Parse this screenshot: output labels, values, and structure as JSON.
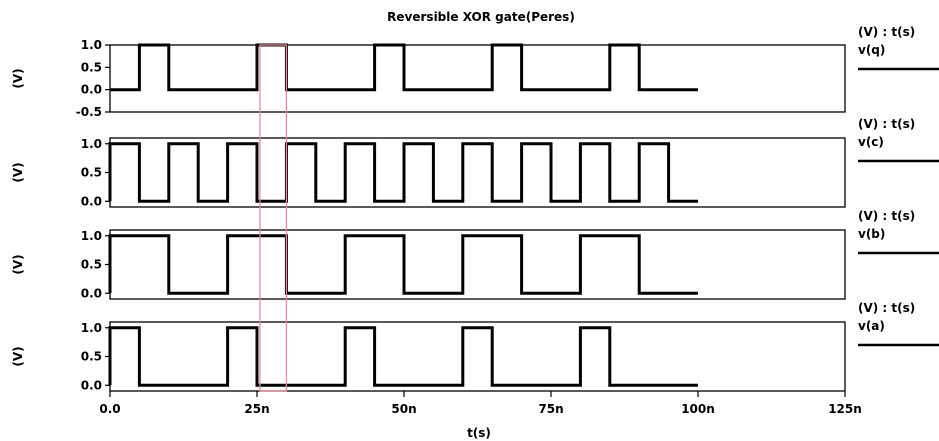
{
  "chart_data": {
    "type": "line",
    "title": "Reversible XOR gate(Peres)",
    "xlabel": "t(s)",
    "x_range": [
      0,
      125
    ],
    "x_ticks": [
      "0.0",
      "25n",
      "50n",
      "75n",
      "100n",
      "125n"
    ],
    "x_tick_values": [
      0,
      25,
      50,
      75,
      100,
      125
    ],
    "highlight_region": [
      25.5,
      30
    ],
    "highlight_color": "#e68a98",
    "line_color": "#000000",
    "panels": [
      {
        "ylabel": "(V)",
        "legend_header": "(V) : t(s)",
        "series_name": "v(q)",
        "ylim": [
          -0.5,
          1.0
        ],
        "y_ticks": [
          "1.0",
          "0.5",
          "0.0",
          "-0.5"
        ],
        "y_tick_values": [
          1.0,
          0.5,
          0.0,
          -0.5
        ],
        "x": [
          0,
          5,
          5,
          10,
          10,
          25,
          25,
          30,
          30,
          45,
          45,
          50,
          50,
          65,
          65,
          70,
          70,
          85,
          85,
          90,
          90,
          100
        ],
        "y": [
          0,
          0,
          1,
          1,
          0,
          0,
          1,
          1,
          0,
          0,
          1,
          1,
          0,
          0,
          1,
          1,
          0,
          0,
          1,
          1,
          0,
          0
        ]
      },
      {
        "ylabel": "(V)",
        "legend_header": "(V) : t(s)",
        "series_name": "v(c)",
        "ylim": [
          -0.1,
          1.1
        ],
        "y_ticks": [
          "1.0",
          "0.5",
          "0.0"
        ],
        "y_tick_values": [
          1.0,
          0.5,
          0.0
        ],
        "x": [
          0,
          0,
          5,
          5,
          10,
          10,
          15,
          15,
          20,
          20,
          25,
          25,
          30,
          30,
          35,
          35,
          40,
          40,
          45,
          45,
          50,
          50,
          55,
          55,
          60,
          60,
          65,
          65,
          70,
          70,
          75,
          75,
          80,
          80,
          85,
          85,
          90,
          90,
          95,
          95,
          100
        ],
        "y": [
          0,
          1,
          1,
          0,
          0,
          1,
          1,
          0,
          0,
          1,
          1,
          0,
          0,
          1,
          1,
          0,
          0,
          1,
          1,
          0,
          0,
          1,
          1,
          0,
          0,
          1,
          1,
          0,
          0,
          1,
          1,
          0,
          0,
          1,
          1,
          0,
          0,
          1,
          1,
          0,
          0
        ]
      },
      {
        "ylabel": "(V)",
        "legend_header": "(V) : t(s)",
        "series_name": "v(b)",
        "ylim": [
          -0.1,
          1.1
        ],
        "y_ticks": [
          "1.0",
          "0.5",
          "0.0"
        ],
        "y_tick_values": [
          1.0,
          0.5,
          0.0
        ],
        "x": [
          0,
          0,
          10,
          10,
          20,
          20,
          30,
          30,
          40,
          40,
          50,
          50,
          60,
          60,
          70,
          70,
          80,
          80,
          90,
          90,
          100
        ],
        "y": [
          0,
          1,
          1,
          0,
          0,
          1,
          1,
          0,
          0,
          1,
          1,
          0,
          0,
          1,
          1,
          0,
          0,
          1,
          1,
          0,
          0
        ]
      },
      {
        "ylabel": "(V)",
        "legend_header": "(V) : t(s)",
        "series_name": "v(a)",
        "ylim": [
          -0.1,
          1.1
        ],
        "y_ticks": [
          "1.0",
          "0.5",
          "0.0"
        ],
        "y_tick_values": [
          1.0,
          0.5,
          0.0
        ],
        "x": [
          0,
          0,
          5,
          5,
          20,
          20,
          25,
          25,
          40,
          40,
          45,
          45,
          60,
          60,
          65,
          65,
          80,
          80,
          85,
          85,
          100
        ],
        "y": [
          0,
          1,
          1,
          0,
          0,
          1,
          1,
          0,
          0,
          1,
          1,
          0,
          0,
          1,
          1,
          0,
          0,
          1,
          1,
          0,
          0
        ]
      }
    ]
  }
}
